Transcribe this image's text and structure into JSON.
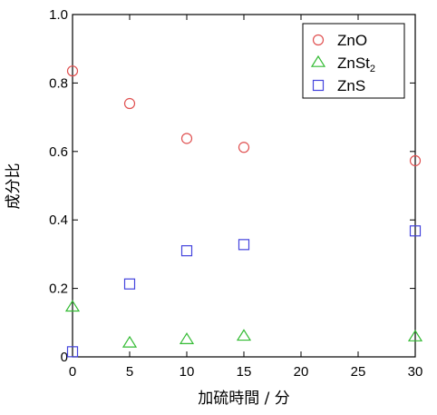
{
  "chart_data": {
    "type": "scatter",
    "title": "",
    "xlabel": "加硫時間 / 分",
    "ylabel": "成分比",
    "xlim": [
      0,
      30
    ],
    "ylim": [
      0,
      1.0
    ],
    "x_ticks": [
      0,
      5,
      10,
      15,
      20,
      25,
      30
    ],
    "y_ticks": [
      0,
      0.2,
      0.4,
      0.6,
      0.8,
      1.0
    ],
    "x_tick_labels": [
      "0",
      "5",
      "10",
      "15",
      "20",
      "25",
      "30"
    ],
    "y_tick_labels": [
      "0",
      "0.2",
      "0.4",
      "0.6",
      "0.8",
      "1.0"
    ],
    "grid": false,
    "legend_position": "top-right",
    "series": [
      {
        "name": "ZnO",
        "legend_main": "ZnO",
        "legend_sub": "",
        "marker": "circle",
        "color": "#e05050",
        "points": [
          [
            0,
            0.835
          ],
          [
            5,
            0.74
          ],
          [
            10,
            0.638
          ],
          [
            15,
            0.612
          ],
          [
            30,
            0.573
          ]
        ]
      },
      {
        "name": "ZnSt2",
        "legend_main": "ZnSt",
        "legend_sub": "2",
        "marker": "triangle",
        "color": "#33bb33",
        "points": [
          [
            0,
            0.145
          ],
          [
            5,
            0.04
          ],
          [
            10,
            0.05
          ],
          [
            15,
            0.06
          ],
          [
            30,
            0.058
          ]
        ]
      },
      {
        "name": "ZnS",
        "legend_main": "ZnS",
        "legend_sub": "",
        "marker": "square",
        "color": "#4444dd",
        "points": [
          [
            0,
            0.015
          ],
          [
            5,
            0.213
          ],
          [
            10,
            0.31
          ],
          [
            15,
            0.328
          ],
          [
            30,
            0.368
          ]
        ]
      }
    ]
  }
}
